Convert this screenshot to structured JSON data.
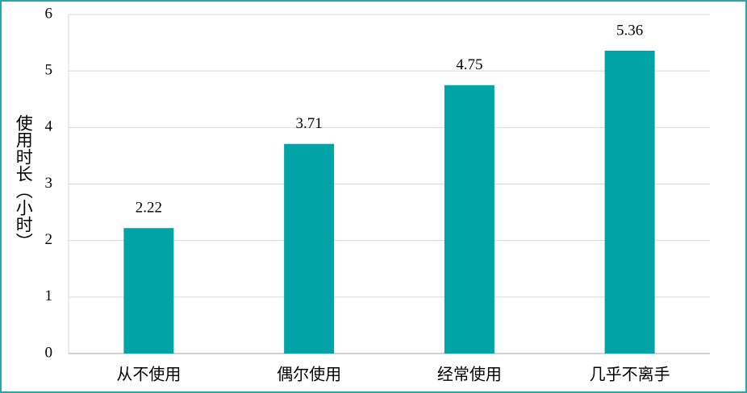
{
  "chart_data": {
    "type": "bar",
    "y_label": "使用时长（小时）",
    "categories": [
      "从不使用",
      "偶尔使用",
      "经常使用",
      "几乎不离手"
    ],
    "values": [
      2.22,
      3.71,
      4.75,
      5.36
    ],
    "color": "#00a3a6",
    "ylim": [
      0,
      6
    ],
    "yticks": [
      0,
      1,
      2,
      3,
      4,
      5,
      6
    ],
    "grid": true
  }
}
